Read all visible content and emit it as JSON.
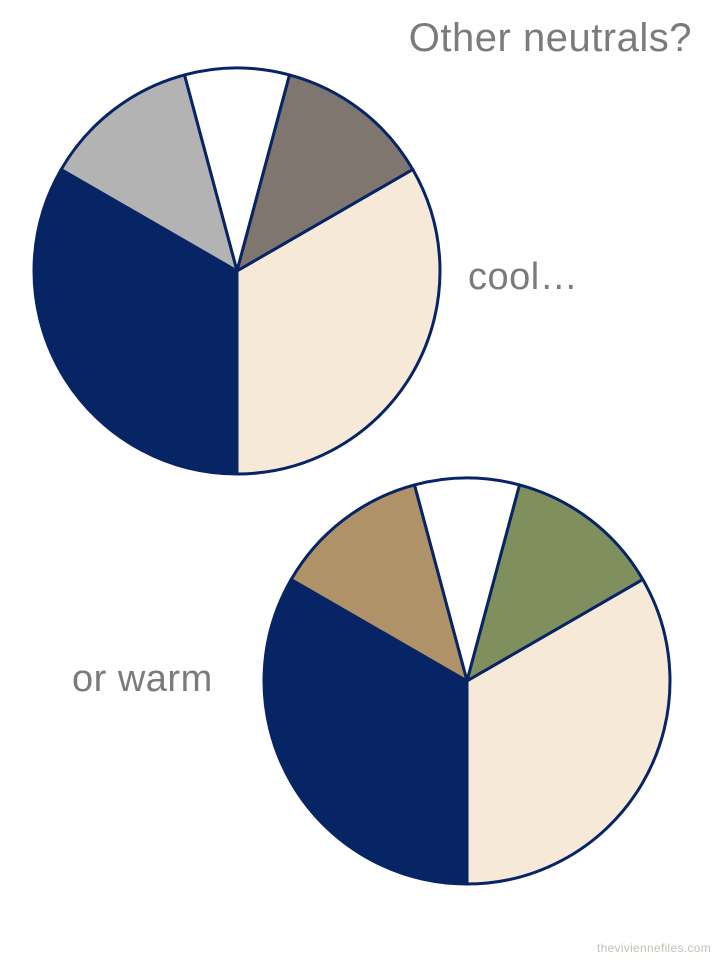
{
  "title": "Other neutrals?",
  "watermark": "theviviennefiles.com",
  "colors": {
    "background": "#ffffff",
    "outline_navy": "#072465",
    "caption_gray": "#7b7b7b",
    "watermark_gray": "#c6c0b6"
  },
  "chart_data": [
    {
      "type": "pie",
      "annotation": "cool…",
      "legend_position": "none",
      "start_angle_deg": -15,
      "slices": [
        {
          "label": "white",
          "percent": 8.3,
          "degrees": 30,
          "color": "#ffffff"
        },
        {
          "label": "warm gray",
          "percent": 12.5,
          "degrees": 45,
          "color": "#7e766f"
        },
        {
          "label": "cream",
          "percent": 33.3,
          "degrees": 120,
          "color": "#f6e9d7"
        },
        {
          "label": "navy",
          "percent": 33.3,
          "degrees": 120,
          "color": "#072465"
        },
        {
          "label": "light gray",
          "percent": 12.5,
          "degrees": 45,
          "color": "#b3b3b3"
        }
      ]
    },
    {
      "type": "pie",
      "annotation": "or warm",
      "legend_position": "none",
      "start_angle_deg": -15,
      "slices": [
        {
          "label": "white",
          "percent": 8.3,
          "degrees": 30,
          "color": "#ffffff"
        },
        {
          "label": "olive green",
          "percent": 12.5,
          "degrees": 45,
          "color": "#7f8f5e"
        },
        {
          "label": "cream",
          "percent": 33.3,
          "degrees": 120,
          "color": "#f6e9d7"
        },
        {
          "label": "navy",
          "percent": 33.3,
          "degrees": 120,
          "color": "#072465"
        },
        {
          "label": "camel",
          "percent": 12.5,
          "degrees": 45,
          "color": "#af9267"
        }
      ]
    }
  ]
}
